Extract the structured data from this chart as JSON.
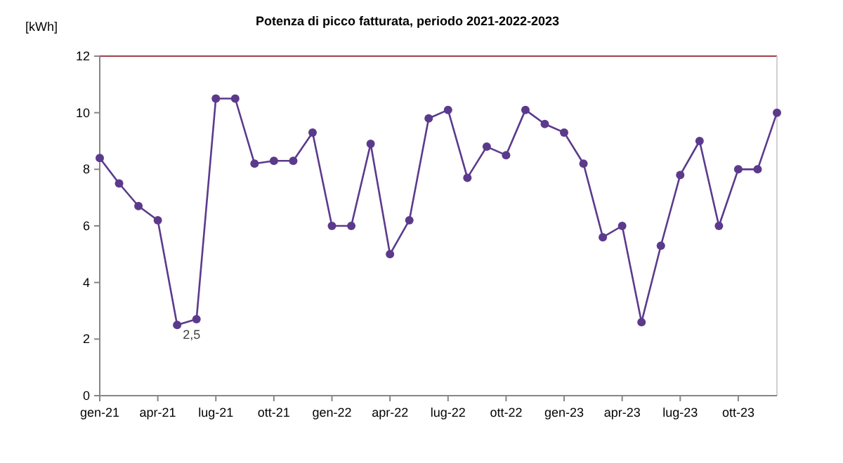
{
  "chart_data": {
    "type": "line",
    "title": "Potenza di picco fatturata, periodo 2021-2022-2023",
    "ylabel": "[kWh]",
    "categories": [
      "gen-21",
      null,
      null,
      "apr-21",
      null,
      null,
      "lug-21",
      null,
      null,
      "ott-21",
      null,
      null,
      "gen-22",
      null,
      null,
      "apr-22",
      null,
      null,
      "lug-22",
      null,
      null,
      "ott-22",
      null,
      null,
      "gen-23",
      null,
      null,
      "apr-23",
      null,
      null,
      "lug-23",
      null,
      null,
      "ott-23",
      null,
      null
    ],
    "series": [
      {
        "color": "#5b3a8c",
        "values": [
          8.4,
          7.5,
          6.7,
          6.2,
          2.5,
          2.7,
          10.5,
          10.5,
          8.2,
          8.3,
          8.3,
          9.3,
          6.0,
          6.0,
          8.9,
          5.0,
          6.2,
          9.8,
          10.1,
          7.7,
          8.8,
          8.5,
          10.1,
          9.6,
          9.3,
          8.2,
          5.6,
          6.0,
          2.6,
          5.3,
          7.8,
          9.0,
          6.0,
          8.0,
          8.0,
          10.0
        ],
        "value_labels": [
          null,
          null,
          null,
          null,
          "2,5",
          null,
          null,
          null,
          null,
          null,
          null,
          null,
          null,
          null,
          null,
          null,
          null,
          null,
          null,
          null,
          null,
          null,
          null,
          null,
          null,
          null,
          null,
          null,
          null,
          null,
          null,
          null,
          null,
          null,
          null,
          null
        ]
      }
    ],
    "ylim": [
      0,
      12
    ],
    "yticks": [
      0,
      2,
      4,
      6,
      8,
      10,
      12
    ],
    "marker": "circle",
    "line_style": "solid"
  }
}
